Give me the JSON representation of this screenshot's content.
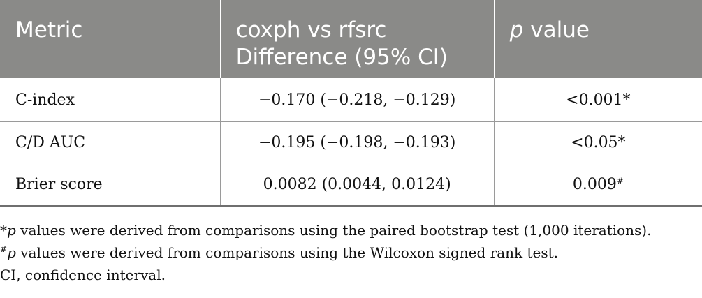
{
  "table": {
    "headers": {
      "metric": "Metric",
      "diff_line1": "coxph vs rfsrc",
      "diff_line2": "Difference (95% CI)",
      "pvalue_italic": "p",
      "pvalue_rest": " value"
    },
    "rows": [
      {
        "metric": "C-index",
        "difference": "−0.170 (−0.218, −0.129)",
        "pvalue": "<0.001*",
        "pvalue_sup": ""
      },
      {
        "metric": "C/D AUC",
        "difference": "−0.195 (−0.198, −0.193)",
        "pvalue": "<0.05*",
        "pvalue_sup": ""
      },
      {
        "metric": "Brier score",
        "difference": "0.0082 (0.0044, 0.0124)",
        "pvalue": "0.009",
        "pvalue_sup": "#"
      }
    ]
  },
  "footnotes": {
    "note1_prefix": "*",
    "note1_italic": "p",
    "note1_text": " values were derived from comparisons using the paired bootstrap test (1,000 iterations).",
    "note2_prefix": "#",
    "note2_italic": "p",
    "note2_text": " values were derived from comparisons using the Wilcoxon signed rank test.",
    "note3_text": "CI, confidence interval."
  },
  "colors": {
    "header_bg": "#8a8a88",
    "header_text": "#ffffff",
    "body_text": "#111111",
    "rule": "#9a9a9a"
  }
}
